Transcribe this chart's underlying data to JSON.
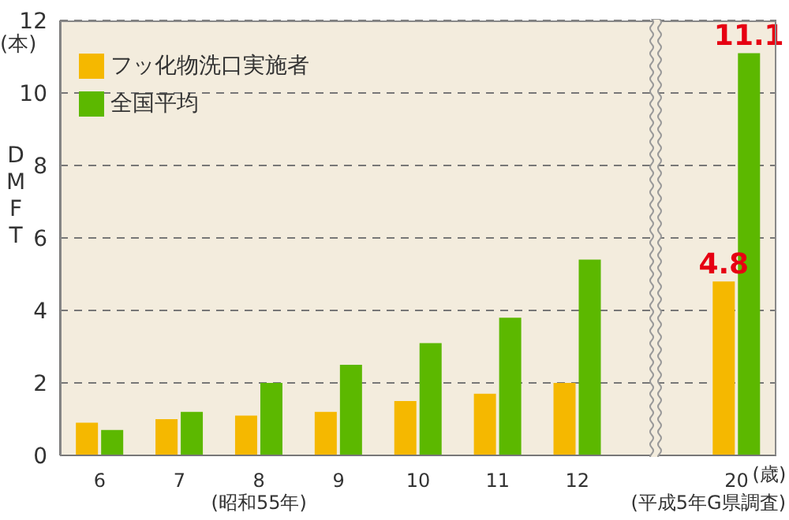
{
  "chart_data": {
    "type": "bar",
    "categories": [
      "6",
      "7",
      "8\n(昭和55年)",
      "9",
      "10",
      "11",
      "12",
      null,
      "20"
    ],
    "ylabel": "DMFT",
    "xlabel": "(歳)",
    "annotations": [
      "(本)",
      "(平成5年G県調査)"
    ],
    "series": [
      {
        "name": "フッ化物洗口実施者",
        "color": "#f5b800",
        "values": [
          0.9,
          1.0,
          1.1,
          1.2,
          1.5,
          1.7,
          2.0,
          null,
          4.8
        ],
        "value_labels": [
          null,
          null,
          null,
          null,
          null,
          null,
          null,
          null,
          "4.8"
        ]
      },
      {
        "name": "全国平均",
        "color": "#5cb800",
        "values": [
          0.7,
          1.2,
          2.0,
          2.5,
          3.1,
          3.8,
          5.4,
          null,
          11.1
        ],
        "value_labels": [
          null,
          null,
          null,
          null,
          null,
          null,
          null,
          null,
          "11.1"
        ]
      }
    ],
    "ylim": [
      0,
      12
    ],
    "yticks": [
      0,
      2,
      4,
      6,
      8,
      10,
      12
    ],
    "grid": "y",
    "legend": "top left"
  }
}
